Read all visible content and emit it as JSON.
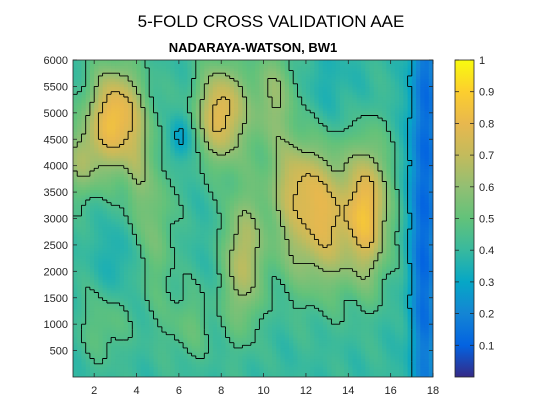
{
  "chart_data": {
    "type": "heatmap",
    "title": "5-FOLD CROSS VALIDATION AAE",
    "subtitle": "NADARAYA-WATSON, BW1",
    "xlabel": "",
    "ylabel": "",
    "xlim": [
      1,
      18
    ],
    "ylim": [
      0,
      6000
    ],
    "x_ticks": [
      "2",
      "4",
      "6",
      "8",
      "10",
      "12",
      "14",
      "16",
      "18"
    ],
    "y_ticks": [
      "500",
      "1000",
      "1500",
      "2000",
      "2500",
      "3000",
      "3500",
      "4000",
      "4500",
      "5000",
      "5500",
      "6000"
    ],
    "colorbar": {
      "range": [
        0,
        1
      ],
      "ticks": [
        "0.1",
        "0.2",
        "0.3",
        "0.4",
        "0.5",
        "0.6",
        "0.7",
        "0.8",
        "0.9",
        "1"
      ],
      "colormap": "parula"
    },
    "contour_levels": [
      0.3,
      0.45,
      0.6,
      0.75
    ],
    "base_value": 0.4,
    "peaks": [
      {
        "x": 3.0,
        "y": 4900,
        "sx": 0.9,
        "sy": 700,
        "amp": 0.45
      },
      {
        "x": 1.4,
        "y": 4100,
        "sx": 0.6,
        "sy": 500,
        "amp": 0.2
      },
      {
        "x": 4.0,
        "y": 3800,
        "sx": 0.4,
        "sy": 800,
        "amp": 0.12
      },
      {
        "x": 8.0,
        "y": 5000,
        "sx": 0.8,
        "sy": 650,
        "amp": 0.4
      },
      {
        "x": 10.5,
        "y": 5300,
        "sx": 0.8,
        "sy": 700,
        "amp": 0.2
      },
      {
        "x": 12.8,
        "y": 3000,
        "sx": 1.6,
        "sy": 900,
        "amp": 0.38
      },
      {
        "x": 15.0,
        "y": 3200,
        "sx": 0.6,
        "sy": 900,
        "amp": 0.3
      },
      {
        "x": 11.5,
        "y": 3800,
        "sx": 0.8,
        "sy": 500,
        "amp": 0.15
      },
      {
        "x": 9.0,
        "y": 2200,
        "sx": 0.6,
        "sy": 900,
        "amp": 0.28
      },
      {
        "x": 5.0,
        "y": 2900,
        "sx": 0.6,
        "sy": 1100,
        "amp": 0.13
      },
      {
        "x": 2.5,
        "y": 1000,
        "sx": 0.8,
        "sy": 500,
        "amp": 0.1
      },
      {
        "x": 6.5,
        "y": 1000,
        "sx": 0.8,
        "sy": 500,
        "amp": 0.1
      },
      {
        "x": 17.6,
        "y": 3500,
        "sx": 0.5,
        "sy": 4000,
        "amp": -0.3
      },
      {
        "x": 13.0,
        "y": 5500,
        "sx": 1.2,
        "sy": 600,
        "amp": -0.05
      },
      {
        "x": 6.0,
        "y": 4500,
        "sx": 0.4,
        "sy": 300,
        "amp": -0.15
      },
      {
        "x": 3.0,
        "y": 2200,
        "sx": 0.5,
        "sy": 500,
        "amp": -0.07
      }
    ]
  }
}
